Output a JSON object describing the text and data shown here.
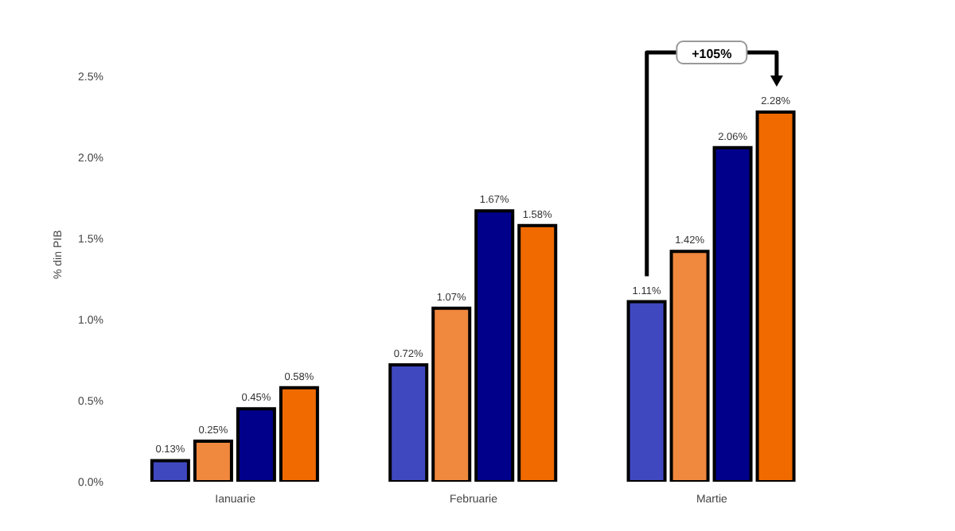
{
  "chart_data": {
    "type": "bar",
    "ylabel": "% din PIB",
    "categories": [
      "Ianuarie",
      "Februarie",
      "Martie"
    ],
    "series": [
      {
        "color": "#4048c0",
        "values": [
          0.13,
          0.72,
          1.11
        ],
        "value_labels": [
          "0.13%",
          "0.72%",
          "1.11%"
        ]
      },
      {
        "color": "#f0883e",
        "values": [
          0.25,
          1.07,
          1.42
        ],
        "value_labels": [
          "0.25%",
          "1.07%",
          "1.42%"
        ]
      },
      {
        "color": "#00008b",
        "values": [
          0.45,
          1.67,
          2.06
        ],
        "value_labels": [
          "0.45%",
          "1.67%",
          "2.06%"
        ]
      },
      {
        "color": "#f06a00",
        "values": [
          0.58,
          1.58,
          2.28
        ],
        "value_labels": [
          "0.58%",
          "1.58%",
          "2.28%"
        ]
      }
    ],
    "ylim": [
      0,
      2.5
    ],
    "yticks": [
      {
        "value": 0,
        "label": "0.0%"
      },
      {
        "value": 0.5,
        "label": "0.5%"
      },
      {
        "value": 1,
        "label": "1.0%"
      },
      {
        "value": 1.5,
        "label": "1.5%"
      },
      {
        "value": 2,
        "label": "2.0%"
      },
      {
        "value": 2.5,
        "label": "2.5%"
      }
    ],
    "annotations": [
      "+105%"
    ],
    "grid": false,
    "legend": false
  }
}
